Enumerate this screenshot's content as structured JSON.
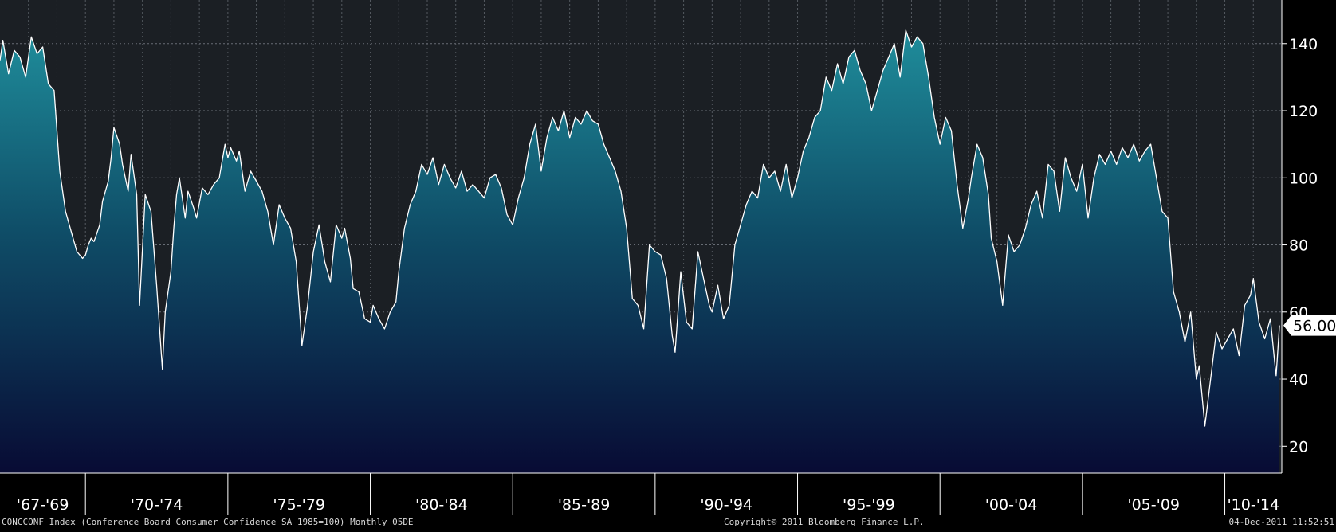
{
  "footer": {
    "index_description": "CONCCONF Index (Conference Board Consumer Confidence SA 1985=100)  Monthly 05DE",
    "copyright": "Copyright© 2011 Bloomberg Finance L.P.",
    "timestamp": "04-Dec-2011 11:52:51"
  },
  "colors": {
    "background": "#1b1f24",
    "line": "#ffffff",
    "fill_top": "#1f8d9b",
    "fill_mid": "#0f4e68",
    "fill_bottom": "#080b34",
    "grid": "#7a8088",
    "axis_text": "#ffffff"
  },
  "chart_data": {
    "type": "area",
    "title": "",
    "xlabel": "",
    "ylabel": "",
    "xlim": [
      1967.0,
      2012.0
    ],
    "ylim": [
      12,
      153
    ],
    "grid": true,
    "y_axis_side": "right",
    "y_ticks": [
      20,
      40,
      60,
      80,
      100,
      120,
      140
    ],
    "x_groups": [
      {
        "label": "'67-'69",
        "start": 1967,
        "end": 1970
      },
      {
        "label": "'70-'74",
        "start": 1970,
        "end": 1975
      },
      {
        "label": "'75-'79",
        "start": 1975,
        "end": 1980
      },
      {
        "label": "'80-'84",
        "start": 1980,
        "end": 1985
      },
      {
        "label": "'85-'89",
        "start": 1985,
        "end": 1990
      },
      {
        "label": "'90-'94",
        "start": 1990,
        "end": 1995
      },
      {
        "label": "'95-'99",
        "start": 1995,
        "end": 2000
      },
      {
        "label": "'00-'04",
        "start": 2000,
        "end": 2005
      },
      {
        "label": "'05-'09",
        "start": 2005,
        "end": 2010
      },
      {
        "label": "'10-'14",
        "start": 2010,
        "end": 2015
      }
    ],
    "last_value_label": "56.00",
    "last_value": 56.0,
    "series": [
      {
        "x": [
          1967.0,
          1967.1,
          1967.3,
          1967.5,
          1967.7,
          1967.9,
          1968.1,
          1968.3,
          1968.5,
          1968.7,
          1968.9,
          1969.1,
          1969.3,
          1969.5,
          1969.7,
          1969.9,
          1970.0,
          1970.1,
          1970.2,
          1970.3,
          1970.5,
          1970.6,
          1970.8,
          1970.9,
          1971.0,
          1971.2,
          1971.3,
          1971.5,
          1971.6,
          1971.8,
          1971.9,
          1972.1,
          1972.3,
          1972.5,
          1972.7,
          1972.8,
          1973.0,
          1973.1,
          1973.2,
          1973.3,
          1973.5,
          1973.6,
          1973.8,
          1973.9,
          1974.1,
          1974.3,
          1974.5,
          1974.7,
          1974.9,
          1975.0,
          1975.1,
          1975.3,
          1975.4,
          1975.6,
          1975.8,
          1976.0,
          1976.2,
          1976.4,
          1976.6,
          1976.8,
          1977.0,
          1977.2,
          1977.4,
          1977.6,
          1977.8,
          1978.0,
          1978.2,
          1978.4,
          1978.6,
          1978.8,
          1979.0,
          1979.1,
          1979.3,
          1979.4,
          1979.6,
          1979.8,
          1980.0,
          1980.1,
          1980.3,
          1980.5,
          1980.7,
          1980.9,
          1981.0,
          1981.2,
          1981.4,
          1981.6,
          1981.8,
          1982.0,
          1982.2,
          1982.4,
          1982.6,
          1982.8,
          1983.0,
          1983.2,
          1983.4,
          1983.6,
          1983.8,
          1984.0,
          1984.2,
          1984.4,
          1984.6,
          1984.8,
          1985.0,
          1985.2,
          1985.4,
          1985.6,
          1985.8,
          1986.0,
          1986.2,
          1986.4,
          1986.6,
          1986.8,
          1987.0,
          1987.2,
          1987.4,
          1987.6,
          1987.8,
          1988.0,
          1988.2,
          1988.4,
          1988.6,
          1988.8,
          1989.0,
          1989.2,
          1989.4,
          1989.6,
          1989.8,
          1990.0,
          1990.2,
          1990.4,
          1990.6,
          1990.7,
          1990.8,
          1990.9,
          1991.1,
          1991.3,
          1991.5,
          1991.7,
          1991.9,
          1992.0,
          1992.2,
          1992.4,
          1992.6,
          1992.8,
          1993.0,
          1993.2,
          1993.4,
          1993.6,
          1993.8,
          1994.0,
          1994.2,
          1994.4,
          1994.6,
          1994.8,
          1995.0,
          1995.2,
          1995.4,
          1995.6,
          1995.8,
          1996.0,
          1996.2,
          1996.4,
          1996.6,
          1996.8,
          1997.0,
          1997.2,
          1997.4,
          1997.6,
          1997.8,
          1998.0,
          1998.2,
          1998.4,
          1998.6,
          1998.8,
          1999.0,
          1999.2,
          1999.4,
          1999.6,
          1999.8,
          2000.0,
          2000.2,
          2000.4,
          2000.6,
          2000.8,
          2001.0,
          2001.1,
          2001.3,
          2001.5,
          2001.7,
          2001.8,
          2002.0,
          2002.2,
          2002.4,
          2002.6,
          2002.8,
          2003.0,
          2003.2,
          2003.4,
          2003.6,
          2003.8,
          2004.0,
          2004.2,
          2004.4,
          2004.6,
          2004.8,
          2005.0,
          2005.2,
          2005.4,
          2005.6,
          2005.8,
          2006.0,
          2006.2,
          2006.4,
          2006.6,
          2006.8,
          2007.0,
          2007.2,
          2007.4,
          2007.6,
          2007.8,
          2008.0,
          2008.2,
          2008.4,
          2008.6,
          2008.8,
          2009.0,
          2009.1,
          2009.3,
          2009.5,
          2009.7,
          2009.9,
          2010.1,
          2010.3,
          2010.5,
          2010.7,
          2010.9,
          2011.0,
          2011.2,
          2011.4,
          2011.6,
          2011.75,
          2011.8,
          2011.92
        ],
        "values": [
          135,
          141,
          131,
          138,
          136,
          130,
          142,
          137,
          139,
          128,
          126,
          102,
          90,
          84,
          78,
          76,
          77,
          80,
          82,
          81,
          86,
          93,
          99,
          106,
          115,
          110,
          104,
          96,
          107,
          95,
          62,
          95,
          90,
          68,
          43,
          60,
          72,
          85,
          95,
          100,
          88,
          96,
          91,
          88,
          97,
          95,
          98,
          100,
          110,
          106,
          109,
          105,
          108,
          96,
          102,
          99,
          96,
          90,
          80,
          92,
          88,
          85,
          75,
          50,
          62,
          78,
          86,
          75,
          69,
          86,
          82,
          85,
          76,
          67,
          66,
          58,
          57,
          62,
          58,
          55,
          60,
          63,
          72,
          85,
          92,
          96,
          104,
          101,
          106,
          98,
          104,
          100,
          97,
          102,
          96,
          98,
          96,
          94,
          100,
          101,
          97,
          89,
          86,
          94,
          100,
          110,
          116,
          102,
          112,
          118,
          114,
          120,
          112,
          118,
          116,
          120,
          117,
          116,
          110,
          106,
          102,
          96,
          85,
          64,
          62,
          55,
          80,
          78,
          77,
          70,
          53,
          48,
          60,
          72,
          57,
          55,
          78,
          70,
          62,
          60,
          68,
          58,
          62,
          80,
          86,
          92,
          96,
          94,
          104,
          100,
          102,
          96,
          104,
          94,
          100,
          108,
          112,
          118,
          120,
          130,
          126,
          134,
          128,
          136,
          138,
          132,
          128,
          120,
          126,
          132,
          136,
          140,
          130,
          144,
          139,
          142,
          140,
          130,
          118,
          110,
          118,
          114,
          98,
          85,
          94,
          100,
          110,
          106,
          95,
          82,
          75,
          62,
          83,
          78,
          80,
          85,
          92,
          96,
          88,
          104,
          102,
          90,
          106,
          100,
          96,
          104,
          88,
          100,
          107,
          104,
          108,
          104,
          109,
          106,
          110,
          105,
          108,
          110,
          100,
          90,
          88,
          66,
          60,
          51,
          60,
          40,
          44,
          26,
          40,
          54,
          49,
          52,
          55,
          47,
          62,
          65,
          70,
          57,
          52,
          58,
          45,
          41,
          56
        ]
      }
    ]
  }
}
